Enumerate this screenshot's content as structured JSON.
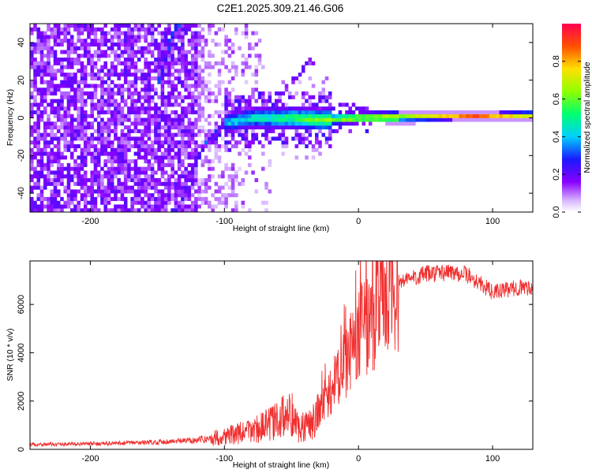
{
  "title": "C2E1.2025.309.21.46.G06",
  "chart_data": [
    {
      "type": "heatmap",
      "xlabel": "Height of straight line (km)",
      "ylabel": "Frequency (Hz)",
      "xlim": [
        -245,
        130
      ],
      "ylim": [
        -50,
        50
      ],
      "xticks": [
        -200,
        -100,
        0,
        100
      ],
      "yticks": [
        -40,
        -20,
        0,
        20,
        40
      ],
      "colorbar": {
        "label": "Normalized spectral amplitude",
        "range": [
          0,
          1
        ],
        "ticks": [
          "0.0",
          "0.2",
          "0.4",
          "0.6",
          "0.8"
        ]
      },
      "tracks": [
        {
          "name": "main-trace",
          "points": [
            [
              -135,
              -50
            ],
            [
              -125,
              -30
            ],
            [
              -115,
              -14
            ],
            [
              -100,
              -3
            ],
            [
              -80,
              0
            ],
            [
              -50,
              0
            ],
            [
              -30,
              -1
            ],
            [
              0,
              0
            ],
            [
              130,
              1.5
            ]
          ]
        },
        {
          "name": "upper-trace",
          "points": [
            [
              -148,
              20
            ],
            [
              -140,
              42
            ],
            [
              -135,
              50
            ]
          ]
        },
        {
          "name": "spur",
          "points": [
            [
              -70,
              8
            ],
            [
              -50,
              18
            ],
            [
              -42,
              25
            ],
            [
              -35,
              30
            ]
          ]
        }
      ]
    },
    {
      "type": "line",
      "xlabel": "Height of straight line (km)",
      "ylabel": "SNR (10 * v/v)",
      "xlim": [
        -245,
        130
      ],
      "ylim": [
        0,
        7800
      ],
      "xticks": [
        -200,
        -100,
        0,
        100
      ],
      "yticks": [
        0,
        2000,
        4000,
        6000
      ],
      "series": [
        {
          "name": "SNR",
          "color": "#f03030",
          "points": [
            [
              -245,
              200
            ],
            [
              -200,
              230
            ],
            [
              -160,
              280
            ],
            [
              -130,
              350
            ],
            [
              -110,
              450
            ],
            [
              -100,
              550
            ],
            [
              -85,
              700
            ],
            [
              -70,
              950
            ],
            [
              -60,
              1200
            ],
            [
              -50,
              1500
            ],
            [
              -45,
              900
            ],
            [
              -40,
              1000
            ],
            [
              -35,
              1100
            ],
            [
              -30,
              1500
            ],
            [
              -25,
              2000
            ],
            [
              -20,
              2400
            ],
            [
              -15,
              2900
            ],
            [
              -10,
              3500
            ],
            [
              -5,
              4200
            ],
            [
              0,
              4700
            ],
            [
              10,
              5500
            ],
            [
              20,
              6300
            ],
            [
              30,
              6900
            ],
            [
              40,
              7100
            ],
            [
              50,
              7250
            ],
            [
              60,
              7300
            ],
            [
              70,
              7350
            ],
            [
              80,
              7250
            ],
            [
              90,
              6900
            ],
            [
              100,
              6500
            ],
            [
              110,
              6600
            ],
            [
              120,
              6700
            ],
            [
              130,
              6700
            ]
          ]
        }
      ]
    }
  ]
}
